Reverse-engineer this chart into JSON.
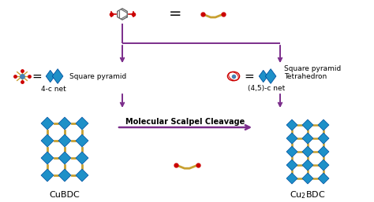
{
  "bg_color": "#ffffff",
  "purple": "#7B2D8B",
  "teal": "#1E90C8",
  "teal_dark": "#0050a0",
  "gold": "#C8A030",
  "red": "#CC0000",
  "gray": "#666666",
  "black": "#000000",
  "figsize": [
    4.74,
    2.57
  ],
  "dpi": 100,
  "title_left": "CuBDC",
  "title_right": "Cu$_2$BDC",
  "label_sq_pyr": "Square pyramid",
  "label_tetra": "Tetrahedron",
  "label_4c": "4-c net",
  "label_45c": "(4,5)-c net",
  "label_arrow": "Molecular Scalpel Cleavage"
}
